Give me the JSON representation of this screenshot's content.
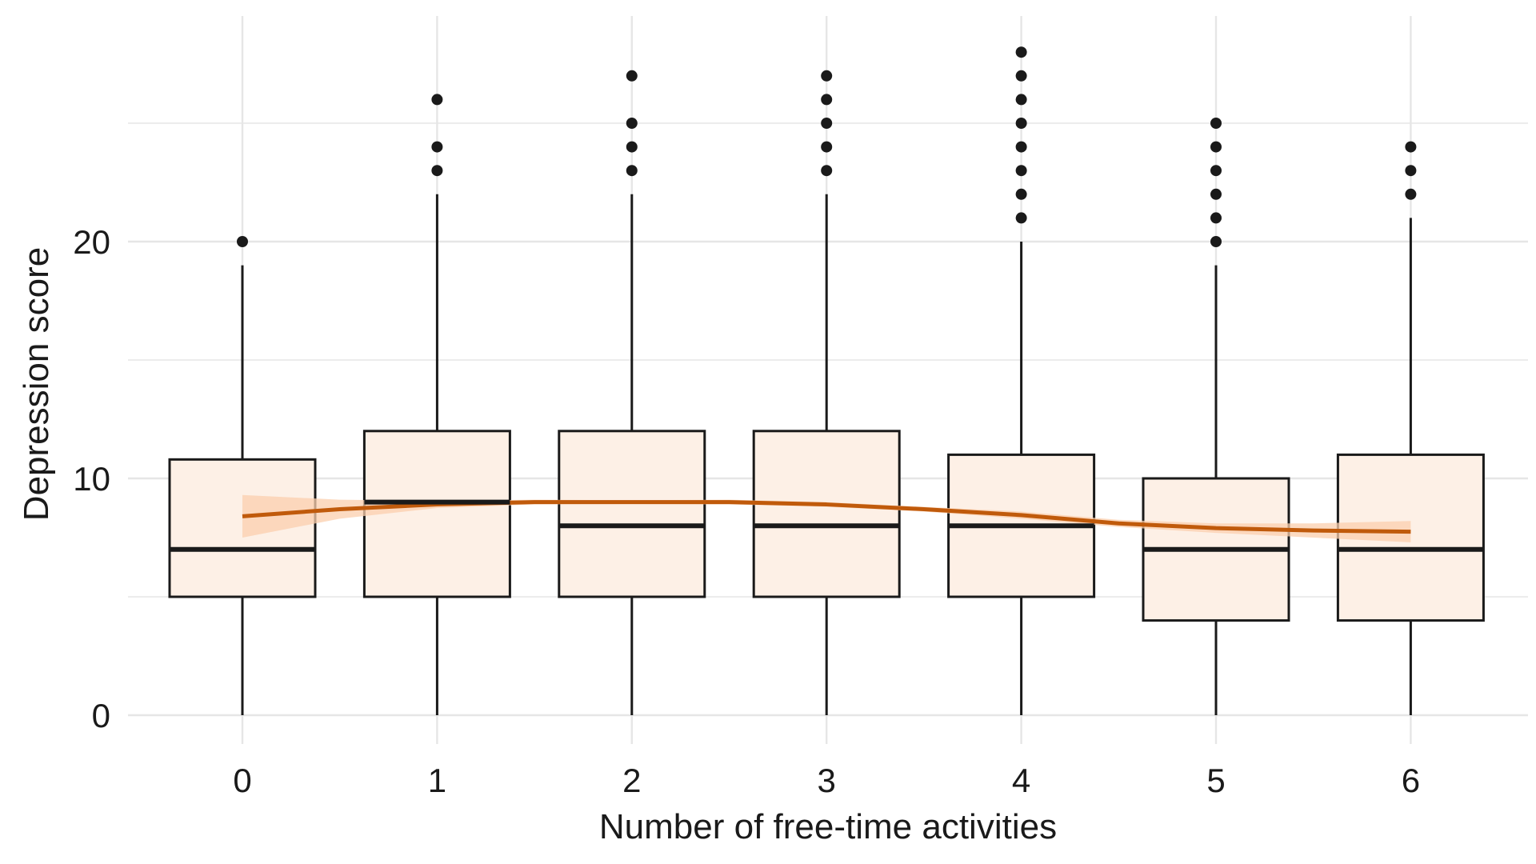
{
  "chart_data": {
    "type": "boxplot",
    "title": "",
    "xlabel": "Number of free-time activities",
    "ylabel": "Depression score",
    "categories": [
      "0",
      "1",
      "2",
      "3",
      "4",
      "5",
      "6"
    ],
    "ylim": [
      -1.5,
      29.5
    ],
    "yticks": [
      0,
      10,
      20
    ],
    "ytick_labels": [
      "0",
      "10",
      "20"
    ],
    "grid": true,
    "colors": {
      "box_fill": "#fdf0e6",
      "box_stroke": "#1a1a1a",
      "trend_line": "#c05a0b",
      "trend_band": "#fbcfae",
      "gridline": "#e6e6e6",
      "outlier": "#1a1a1a"
    },
    "boxes": [
      {
        "x": "0",
        "min": 0,
        "q1": 5,
        "median": 7,
        "q3": 10.8,
        "max": 19,
        "outliers": [
          20
        ]
      },
      {
        "x": "1",
        "min": 0,
        "q1": 5,
        "median": 9,
        "q3": 12,
        "max": 22,
        "outliers": [
          23,
          24,
          26
        ]
      },
      {
        "x": "2",
        "min": 0,
        "q1": 5,
        "median": 8,
        "q3": 12,
        "max": 22,
        "outliers": [
          23,
          24,
          25,
          27
        ]
      },
      {
        "x": "3",
        "min": 0,
        "q1": 5,
        "median": 8,
        "q3": 12,
        "max": 22,
        "outliers": [
          23,
          24,
          25,
          26,
          27
        ]
      },
      {
        "x": "4",
        "min": 0,
        "q1": 5,
        "median": 8,
        "q3": 11,
        "max": 20,
        "outliers": [
          21,
          22,
          23,
          24,
          25,
          26,
          27,
          28
        ]
      },
      {
        "x": "5",
        "min": 0,
        "q1": 4,
        "median": 7,
        "q3": 10,
        "max": 19,
        "outliers": [
          20,
          21,
          22,
          23,
          24,
          25
        ]
      },
      {
        "x": "6",
        "min": 0,
        "q1": 4,
        "median": 7,
        "q3": 11,
        "max": 21,
        "outliers": [
          22,
          23,
          24
        ]
      }
    ],
    "trend": {
      "x": [
        0,
        0.5,
        1,
        1.5,
        2,
        2.5,
        3,
        3.5,
        4,
        4.5,
        5,
        5.5,
        6
      ],
      "y": [
        8.4,
        8.7,
        8.9,
        9.0,
        9.0,
        9.0,
        8.9,
        8.7,
        8.45,
        8.1,
        7.9,
        7.8,
        7.75
      ],
      "lower": [
        7.5,
        8.3,
        8.75,
        8.9,
        8.92,
        8.9,
        8.8,
        8.6,
        8.3,
        7.95,
        7.7,
        7.5,
        7.3
      ],
      "upper": [
        9.3,
        9.1,
        9.05,
        9.1,
        9.08,
        9.1,
        9.0,
        8.8,
        8.6,
        8.25,
        8.1,
        8.1,
        8.2
      ]
    }
  }
}
